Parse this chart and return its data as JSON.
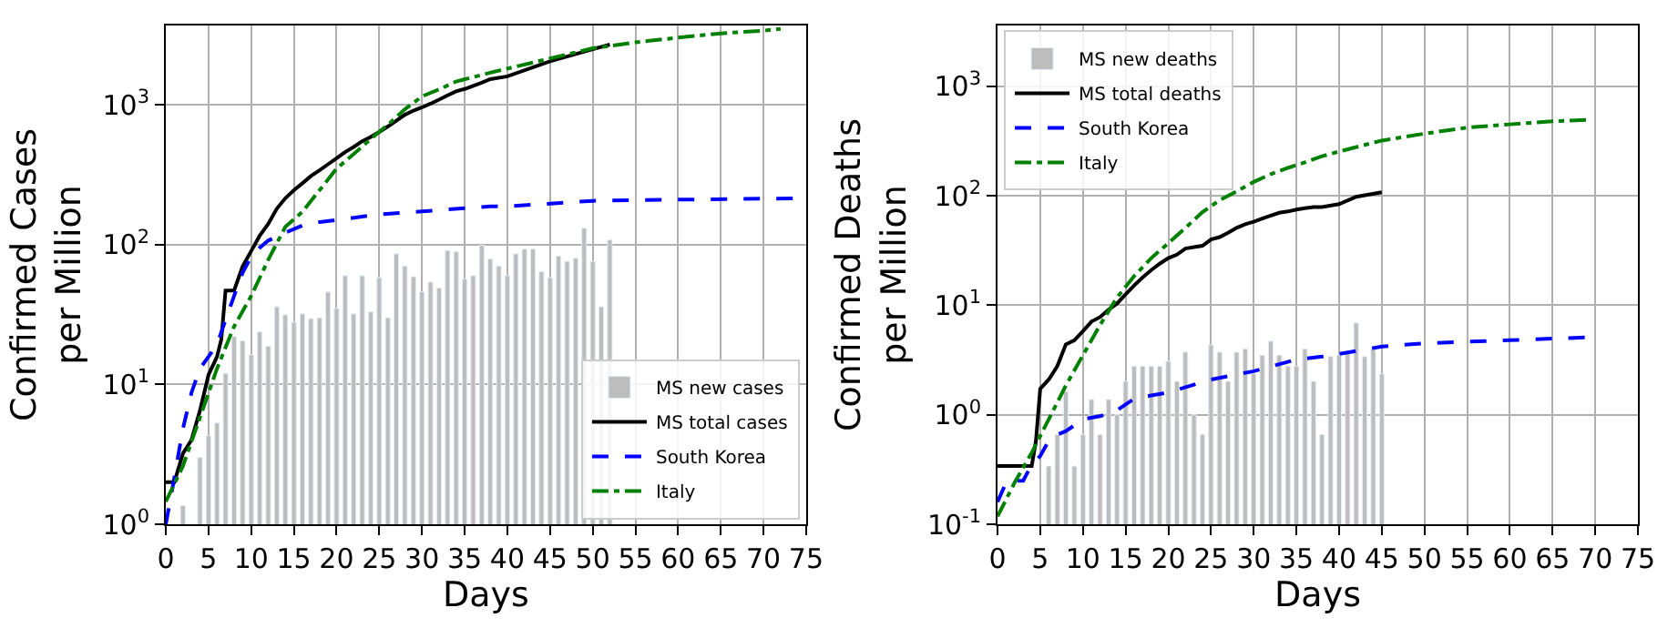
{
  "chart_data": [
    {
      "type": "line",
      "xlabel": "Days",
      "ylabel": "Confirmed Cases\nper Million",
      "log": "y",
      "grid": true,
      "legend": "bottom right",
      "xlim": [
        0,
        75
      ],
      "xticks": [
        0,
        5,
        10,
        15,
        20,
        25,
        30,
        35,
        40,
        45,
        50,
        55,
        60,
        65,
        70,
        75
      ],
      "ylim": [
        1,
        3700
      ],
      "yticks": [
        {
          "value": 1,
          "label": "10$^{0}$"
        },
        {
          "value": 10,
          "label": "10$^{1}$"
        },
        {
          "value": 100,
          "label": "10$^{2}$"
        },
        {
          "value": 1000,
          "label": "10$^{3}$"
        }
      ],
      "series": [
        {
          "name": "MS new cases",
          "type": "bar",
          "color": "#bdbdbd",
          "x": [
            2,
            4,
            5,
            6,
            7,
            8,
            9,
            10,
            11,
            12,
            13,
            14,
            15,
            16,
            17,
            18,
            19,
            20,
            21,
            22,
            23,
            24,
            25,
            26,
            27,
            28,
            29,
            30,
            31,
            32,
            33,
            34,
            35,
            36,
            37,
            38,
            39,
            40,
            41,
            42,
            43,
            44,
            45,
            46,
            47,
            48,
            49,
            50,
            51,
            52
          ],
          "values": [
            1.36,
            3.0,
            4.3,
            5.3,
            12,
            22,
            20.5,
            16.3,
            23.8,
            18.8,
            36,
            31.5,
            27.9,
            32,
            29.6,
            30,
            45.9,
            35,
            60,
            32,
            60,
            33,
            58,
            30,
            86,
            70.5,
            59,
            46,
            54,
            49,
            91,
            89,
            57,
            60,
            99,
            79,
            70.5,
            60,
            86,
            93,
            93,
            64,
            58,
            83,
            76,
            80,
            131,
            76,
            36,
            108
          ]
        },
        {
          "name": "MS total cases",
          "color": "#000000",
          "line_style": "solid",
          "x": [
            0,
            1,
            2,
            3,
            4,
            5,
            6,
            6.5,
            7,
            8,
            9,
            10,
            11,
            12,
            13,
            14,
            15,
            16,
            17,
            18,
            19,
            20,
            21,
            22,
            23,
            24,
            25,
            26,
            27,
            28,
            29,
            30,
            31,
            32,
            33,
            34,
            35,
            36,
            37,
            38,
            40,
            45,
            50,
            52
          ],
          "values": [
            2,
            2,
            3.2,
            4.0,
            6.5,
            11.7,
            15.8,
            21,
            47,
            47,
            70,
            90,
            116,
            141,
            181,
            215,
            245,
            275,
            310,
            340,
            376,
            415,
            460,
            500,
            550,
            590,
            640,
            700,
            770,
            850,
            910,
            960,
            1020,
            1090,
            1170,
            1250,
            1300,
            1370,
            1440,
            1530,
            1600,
            2050,
            2500,
            2700
          ]
        },
        {
          "name": "South Korea",
          "color": "#0000ff",
          "line_style": "dashed",
          "x": [
            0,
            1,
            2,
            3,
            4,
            5,
            6,
            7,
            8,
            9,
            10,
            11,
            12,
            14,
            16,
            18,
            20,
            25,
            30,
            38,
            40,
            50,
            60,
            75
          ],
          "values": [
            1.0,
            2.15,
            4.8,
            8.7,
            13,
            15.8,
            19.3,
            29,
            43,
            63,
            82,
            95,
            107,
            122,
            137,
            145,
            150,
            165,
            173,
            188,
            188,
            206,
            210,
            215
          ]
        },
        {
          "name": "Italy",
          "color": "#008000",
          "line_style": "dashdot",
          "x": [
            0,
            2,
            4,
            6,
            8,
            10,
            12,
            14,
            16,
            18,
            20,
            22,
            24,
            26,
            28,
            30,
            32,
            34,
            36,
            38,
            45,
            50,
            55,
            60,
            65,
            70,
            72
          ],
          "values": [
            1.45,
            2.6,
            5.8,
            13,
            26,
            43,
            78,
            134,
            172,
            245,
            350,
            445,
            570,
            720,
            930,
            1150,
            1290,
            1470,
            1580,
            1700,
            2150,
            2540,
            2800,
            3030,
            3250,
            3400,
            3500
          ]
        }
      ]
    },
    {
      "type": "line",
      "xlabel": "Days",
      "ylabel": "Confirmed Deaths\nper Million",
      "log": "y",
      "grid": true,
      "legend": "top left",
      "xlim": [
        0,
        75
      ],
      "xticks": [
        0,
        5,
        10,
        15,
        20,
        25,
        30,
        35,
        40,
        45,
        50,
        55,
        60,
        65,
        70,
        75
      ],
      "ylim": [
        0.1,
        3600
      ],
      "yticks": [
        {
          "value": 0.1,
          "label": "10$^{-1}$"
        },
        {
          "value": 1,
          "label": "10$^{0}$"
        },
        {
          "value": 10,
          "label": "10$^{1}$"
        },
        {
          "value": 100,
          "label": "10$^{2}$"
        },
        {
          "value": 1000,
          "label": "10$^{3}$"
        }
      ],
      "series": [
        {
          "name": "MS new deaths",
          "type": "bar",
          "color": "#bdbdbd",
          "x": [
            6,
            7,
            8,
            9,
            10,
            11,
            12,
            13,
            14,
            15,
            16,
            17,
            18,
            19,
            20,
            21,
            22,
            23,
            24,
            25,
            26,
            27,
            28,
            29,
            30,
            31,
            32,
            33,
            34,
            35,
            36,
            37,
            38,
            39,
            40,
            41,
            42,
            43,
            44,
            45
          ],
          "values": [
            0.34,
            0.66,
            1.63,
            0.34,
            0.66,
            1.38,
            0.66,
            1.38,
            1.0,
            2.02,
            2.78,
            2.78,
            2.78,
            2.78,
            3.08,
            2.02,
            3.73,
            1.0,
            0.66,
            4.35,
            3.73,
            2.02,
            3.73,
            4.0,
            2.39,
            3.5,
            4.7,
            3.5,
            2.78,
            2.78,
            4.0,
            2.02,
            0.66,
            3.4,
            3.5,
            3.7,
            6.9,
            3.4,
            4.0,
            2.36
          ]
        },
        {
          "name": "MS total deaths",
          "color": "#000000",
          "line_style": "solid",
          "x": [
            0,
            4,
            4.5,
            5,
            6,
            7,
            8,
            9,
            10,
            11,
            12,
            13,
            14,
            15,
            16,
            17,
            18,
            19,
            20,
            21,
            22,
            23,
            24,
            25,
            26,
            27,
            28,
            29,
            30,
            31,
            32,
            33,
            34,
            35,
            36,
            37,
            38,
            40,
            42,
            45
          ],
          "values": [
            0.34,
            0.34,
            0.58,
            1.73,
            2.1,
            2.78,
            4.4,
            4.8,
            5.8,
            7.1,
            7.8,
            9.1,
            10.4,
            12.6,
            15.2,
            18,
            21,
            24,
            27,
            29,
            33,
            34,
            35,
            40,
            42,
            46,
            51,
            55,
            58,
            62,
            66,
            70,
            72,
            75,
            77,
            79,
            79,
            84,
            98,
            108
          ]
        },
        {
          "name": "South Korea",
          "color": "#0000ff",
          "line_style": "dashed",
          "x": [
            0,
            1,
            2,
            3,
            4,
            5,
            6,
            7,
            8,
            9,
            10,
            12,
            14,
            16,
            18,
            20,
            25,
            30,
            35,
            38,
            40,
            45,
            50,
            60,
            69
          ],
          "values": [
            0.16,
            0.24,
            0.25,
            0.25,
            0.35,
            0.42,
            0.58,
            0.66,
            0.71,
            0.8,
            0.91,
            0.97,
            1.1,
            1.4,
            1.5,
            1.6,
            2.1,
            2.5,
            3.2,
            3.4,
            3.6,
            4.2,
            4.5,
            4.8,
            5.1
          ]
        },
        {
          "name": "Italy",
          "color": "#008000",
          "line_style": "dashdot",
          "x": [
            0,
            2,
            4,
            6,
            8,
            10,
            12,
            14,
            16,
            18,
            20,
            22,
            24,
            26,
            28,
            30,
            32,
            34,
            36,
            38,
            40,
            45,
            50,
            55,
            60,
            65,
            69
          ],
          "values": [
            0.118,
            0.24,
            0.45,
            0.91,
            1.85,
            3.5,
            6.6,
            11.8,
            18.5,
            27,
            37,
            51,
            71,
            91,
            110,
            134,
            158,
            180,
            202,
            230,
            254,
            320,
            370,
            420,
            450,
            480,
            495
          ]
        }
      ]
    }
  ]
}
